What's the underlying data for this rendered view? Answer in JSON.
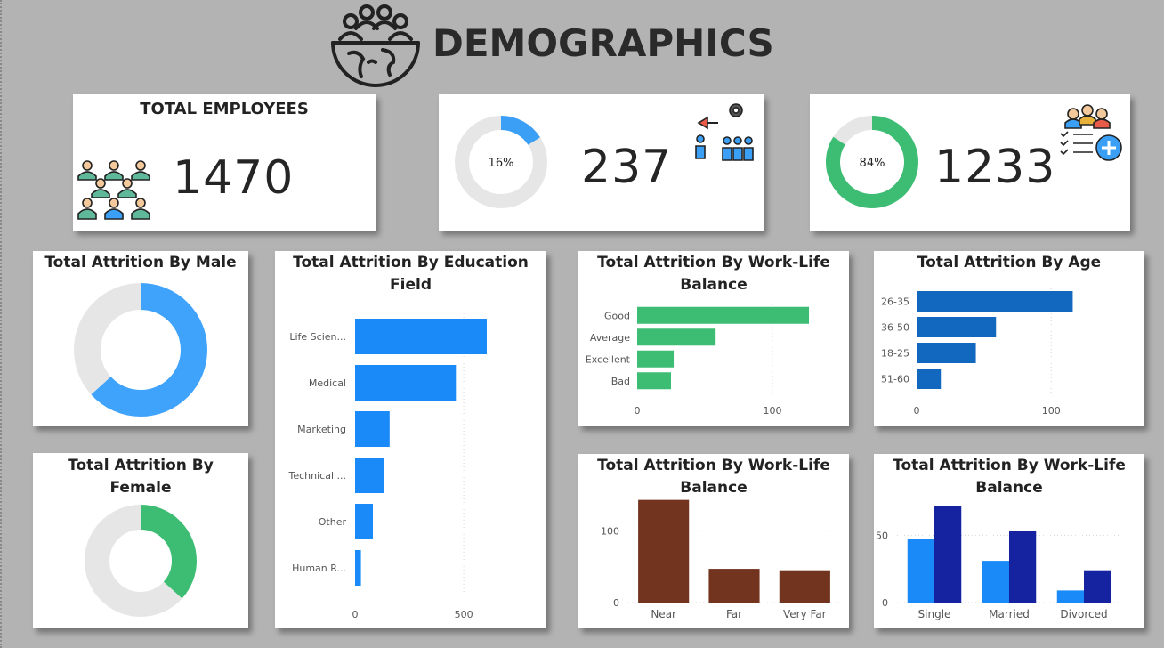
{
  "header": {
    "title": "DEMOGRAPHICS",
    "icon": "people-globe-icon"
  },
  "kpis": {
    "total": {
      "label": "TOTAL EMPLOYEES",
      "value": "1470",
      "icon": "people-group-icon"
    },
    "attrition": {
      "value": "237",
      "percent_label": "16%",
      "percent": 16,
      "icon": "employee-leaving-icon",
      "color": "#3a9ff5"
    },
    "retained": {
      "value": "1233",
      "percent_label": "84%",
      "percent": 84,
      "icon": "team-add-icon",
      "color": "#3cbd73"
    }
  },
  "chart_data": [
    {
      "id": "male",
      "type": "pie",
      "title": "Total Attrition By Male",
      "values": [
        150,
        87
      ],
      "colors": [
        "#3fa2fb",
        "#e6e6e6"
      ]
    },
    {
      "id": "female",
      "type": "pie",
      "title": "Total Attrition By Female",
      "values": [
        87,
        150
      ],
      "colors": [
        "#3cbd73",
        "#e6e6e6"
      ]
    },
    {
      "id": "education",
      "type": "bar",
      "orientation": "horizontal",
      "title": "Total Attrition By Education Field",
      "categories": [
        "Life Scien...",
        "Medical",
        "Marketing",
        "Technical ...",
        "Other",
        "Human R..."
      ],
      "values": [
        606,
        464,
        159,
        132,
        82,
        27
      ],
      "xlim": [
        0,
        860
      ],
      "xticks": [
        0,
        500
      ],
      "color": "#1a8af8"
    },
    {
      "id": "worklife",
      "type": "bar",
      "orientation": "horizontal",
      "title": "Total Attrition By Work-Life Balance",
      "categories": [
        "Good",
        "Average",
        "Excellent",
        "Bad"
      ],
      "values": [
        127,
        58,
        27,
        25
      ],
      "xlim": [
        0,
        150
      ],
      "xticks": [
        0,
        100
      ],
      "color": "#3cbd73"
    },
    {
      "id": "age",
      "type": "bar",
      "orientation": "horizontal",
      "title": "Total Attrition By Age",
      "categories": [
        "26-35",
        "36-50",
        "18-25",
        "51-60"
      ],
      "values": [
        116,
        59,
        44,
        18
      ],
      "xlim": [
        0,
        160
      ],
      "xticks": [
        0,
        100
      ],
      "color": "#1267bf"
    },
    {
      "id": "distance",
      "type": "bar",
      "orientation": "vertical",
      "title": "Total Attrition By Work-Life Balance",
      "categories": [
        "Near",
        "Far",
        "Very Far"
      ],
      "values": [
        143,
        47,
        45
      ],
      "ylim": [
        0,
        150
      ],
      "yticks": [
        0,
        100
      ],
      "color": "#72331f"
    },
    {
      "id": "marital",
      "type": "bar",
      "orientation": "vertical",
      "title": "Total Attrition By Work-Life Balance",
      "categories": [
        "Single",
        "Married",
        "Divorced"
      ],
      "series": [
        {
          "values": [
            47,
            31,
            9
          ],
          "color": "#1a8af8"
        },
        {
          "values": [
            72,
            53,
            24
          ],
          "color": "#1523a0"
        }
      ],
      "ylim": [
        0,
        80
      ],
      "yticks": [
        0,
        50
      ]
    }
  ]
}
